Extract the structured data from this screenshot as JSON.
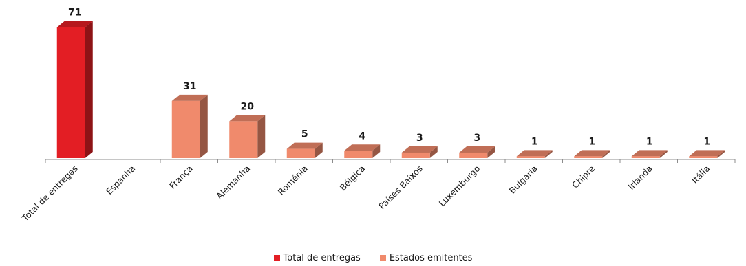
{
  "chart_data": {
    "type": "bar",
    "categories": [
      "Total de entregas",
      "Espanha",
      "França",
      "Alemanha",
      "Roménia",
      "Bélgica",
      "Países Baixos",
      "Luxemburgo",
      "Bulgária",
      "Chipre",
      "Irlanda",
      "Itália"
    ],
    "series": [
      {
        "name": "Total de entregas",
        "color": "#e31e24",
        "values": [
          71,
          null,
          null,
          null,
          null,
          null,
          null,
          null,
          null,
          null,
          null,
          null
        ]
      },
      {
        "name": "Estados emitentes",
        "color": "#f08a6c",
        "values": [
          null,
          null,
          31,
          20,
          5,
          4,
          3,
          3,
          1,
          1,
          1,
          1
        ]
      }
    ],
    "data_labels": [
      71,
      null,
      31,
      20,
      5,
      4,
      3,
      3,
      1,
      1,
      1,
      1
    ],
    "ylim": [
      0,
      75
    ],
    "grid": false,
    "legend_position": "bottom"
  }
}
